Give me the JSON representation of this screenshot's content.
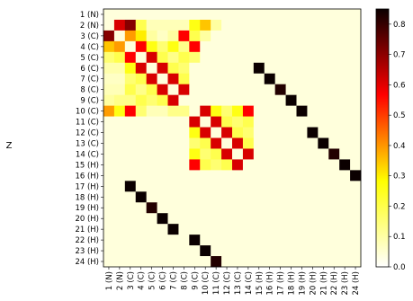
{
  "chart_data": {
    "type": "heatmap",
    "title": "",
    "ylabel": "Z",
    "xlabel": "",
    "labels": [
      "1 (N)",
      "2 (N)",
      "3 (C)",
      "4 (C)",
      "5 (C)",
      "6 (C)",
      "7 (C)",
      "8 (C)",
      "9 (C)",
      "10 (C)",
      "11 (C)",
      "12 (C)",
      "13 (C)",
      "14 (C)",
      "15 (H)",
      "16 (H)",
      "17 (H)",
      "18 (H)",
      "19 (H)",
      "20 (H)",
      "21 (H)",
      "22 (H)",
      "23 (H)",
      "24 (H)"
    ],
    "colorbar": {
      "min": 0.0,
      "max": 0.85,
      "ticks": [
        0.0,
        0.1,
        0.2,
        0.3,
        0.4,
        0.5,
        0.6,
        0.7,
        0.8
      ],
      "tick_labels": [
        "0.0",
        "0.1",
        "0.2",
        "0.3",
        "0.4",
        "0.5",
        "0.6",
        "0.7",
        "0.8"
      ],
      "colormap": "hot_r"
    },
    "base_value": 0.03,
    "values": [
      [
        1,
        0,
        0.03
      ],
      [
        1,
        1,
        0.6
      ],
      [
        1,
        2,
        0.7
      ],
      [
        1,
        3,
        0.15
      ],
      [
        1,
        4,
        0.06
      ],
      [
        1,
        5,
        0.06
      ],
      [
        1,
        6,
        0.06
      ],
      [
        1,
        7,
        0.06
      ],
      [
        1,
        8,
        0.2
      ],
      [
        1,
        9,
        0.3
      ],
      [
        1,
        10,
        0.08
      ],
      [
        2,
        0,
        0.7
      ],
      [
        2,
        1,
        0.03
      ],
      [
        2,
        2,
        0.35
      ],
      [
        2,
        3,
        0.25
      ],
      [
        2,
        4,
        0.08
      ],
      [
        2,
        5,
        0.05
      ],
      [
        2,
        6,
        0.08
      ],
      [
        2,
        7,
        0.55
      ],
      [
        2,
        8,
        0.15
      ],
      [
        2,
        9,
        0.08
      ],
      [
        3,
        0,
        0.3
      ],
      [
        3,
        1,
        0.35
      ],
      [
        3,
        2,
        0.03
      ],
      [
        3,
        3,
        0.55
      ],
      [
        3,
        4,
        0.2
      ],
      [
        3,
        5,
        0.12
      ],
      [
        3,
        6,
        0.2
      ],
      [
        3,
        7,
        0.1
      ],
      [
        3,
        8,
        0.55
      ],
      [
        4,
        0,
        0.12
      ],
      [
        4,
        1,
        0.15
      ],
      [
        4,
        2,
        0.55
      ],
      [
        4,
        3,
        0.03
      ],
      [
        4,
        4,
        0.6
      ],
      [
        4,
        5,
        0.15
      ],
      [
        4,
        6,
        0.1
      ],
      [
        4,
        7,
        0.15
      ],
      [
        4,
        8,
        0.12
      ],
      [
        5,
        0,
        0.07
      ],
      [
        5,
        1,
        0.07
      ],
      [
        5,
        2,
        0.2
      ],
      [
        5,
        3,
        0.6
      ],
      [
        5,
        4,
        0.03
      ],
      [
        5,
        5,
        0.6
      ],
      [
        5,
        6,
        0.15
      ],
      [
        5,
        7,
        0.12
      ],
      [
        6,
        0,
        0.05
      ],
      [
        6,
        1,
        0.05
      ],
      [
        6,
        2,
        0.12
      ],
      [
        6,
        3,
        0.15
      ],
      [
        6,
        4,
        0.6
      ],
      [
        6,
        5,
        0.03
      ],
      [
        6,
        6,
        0.6
      ],
      [
        6,
        7,
        0.15
      ],
      [
        7,
        0,
        0.06
      ],
      [
        7,
        1,
        0.06
      ],
      [
        7,
        2,
        0.15
      ],
      [
        7,
        3,
        0.1
      ],
      [
        7,
        4,
        0.15
      ],
      [
        7,
        5,
        0.6
      ],
      [
        7,
        6,
        0.03
      ],
      [
        7,
        7,
        0.6
      ],
      [
        8,
        0,
        0.08
      ],
      [
        8,
        1,
        0.1
      ],
      [
        8,
        2,
        0.1
      ],
      [
        8,
        3,
        0.15
      ],
      [
        8,
        4,
        0.12
      ],
      [
        8,
        5,
        0.15
      ],
      [
        8,
        6,
        0.6
      ],
      [
        8,
        7,
        0.03
      ],
      [
        9,
        0,
        0.35
      ],
      [
        9,
        1,
        0.2
      ],
      [
        9,
        2,
        0.55
      ],
      [
        9,
        3,
        0.12
      ],
      [
        9,
        4,
        0.06
      ],
      [
        9,
        5,
        0.06
      ],
      [
        9,
        6,
        0.1
      ],
      [
        9,
        7,
        0.1
      ],
      [
        9,
        8,
        0.03
      ],
      [
        9,
        9,
        0.6
      ],
      [
        9,
        10,
        0.2
      ],
      [
        9,
        11,
        0.12
      ],
      [
        9,
        12,
        0.2
      ],
      [
        9,
        13,
        0.55
      ],
      [
        10,
        8,
        0.6
      ],
      [
        10,
        9,
        0.03
      ],
      [
        10,
        10,
        0.6
      ],
      [
        10,
        11,
        0.15
      ],
      [
        10,
        12,
        0.12
      ],
      [
        10,
        13,
        0.15
      ],
      [
        11,
        8,
        0.2
      ],
      [
        11,
        9,
        0.6
      ],
      [
        11,
        10,
        0.03
      ],
      [
        11,
        11,
        0.6
      ],
      [
        11,
        12,
        0.15
      ],
      [
        11,
        13,
        0.12
      ],
      [
        12,
        8,
        0.12
      ],
      [
        12,
        9,
        0.15
      ],
      [
        12,
        10,
        0.6
      ],
      [
        12,
        11,
        0.03
      ],
      [
        12,
        12,
        0.6
      ],
      [
        12,
        13,
        0.15
      ],
      [
        13,
        8,
        0.2
      ],
      [
        13,
        9,
        0.12
      ],
      [
        13,
        10,
        0.15
      ],
      [
        13,
        11,
        0.6
      ],
      [
        13,
        12,
        0.03
      ],
      [
        13,
        13,
        0.6
      ],
      [
        14,
        8,
        0.55
      ],
      [
        14,
        9,
        0.15
      ],
      [
        14,
        10,
        0.12
      ],
      [
        14,
        11,
        0.15
      ],
      [
        14,
        12,
        0.6
      ],
      [
        14,
        13,
        0.03
      ],
      [
        5,
        14,
        0.85
      ],
      [
        6,
        15,
        0.85
      ],
      [
        7,
        16,
        0.82
      ],
      [
        8,
        17,
        0.85
      ],
      [
        9,
        18,
        0.85
      ],
      [
        11,
        19,
        0.85
      ],
      [
        12,
        20,
        0.85
      ],
      [
        13,
        21,
        0.82
      ],
      [
        14,
        22,
        0.85
      ],
      [
        15,
        23,
        0.85
      ],
      [
        16,
        2,
        0.85
      ],
      [
        17,
        3,
        0.85
      ],
      [
        18,
        4,
        0.82
      ],
      [
        19,
        5,
        0.85
      ],
      [
        20,
        6,
        0.85
      ],
      [
        21,
        8,
        0.85
      ],
      [
        22,
        9,
        0.85
      ],
      [
        23,
        10,
        0.82
      ],
      [
        24,
        11,
        0.85
      ],
      [
        25,
        12,
        0.85
      ]
    ]
  }
}
